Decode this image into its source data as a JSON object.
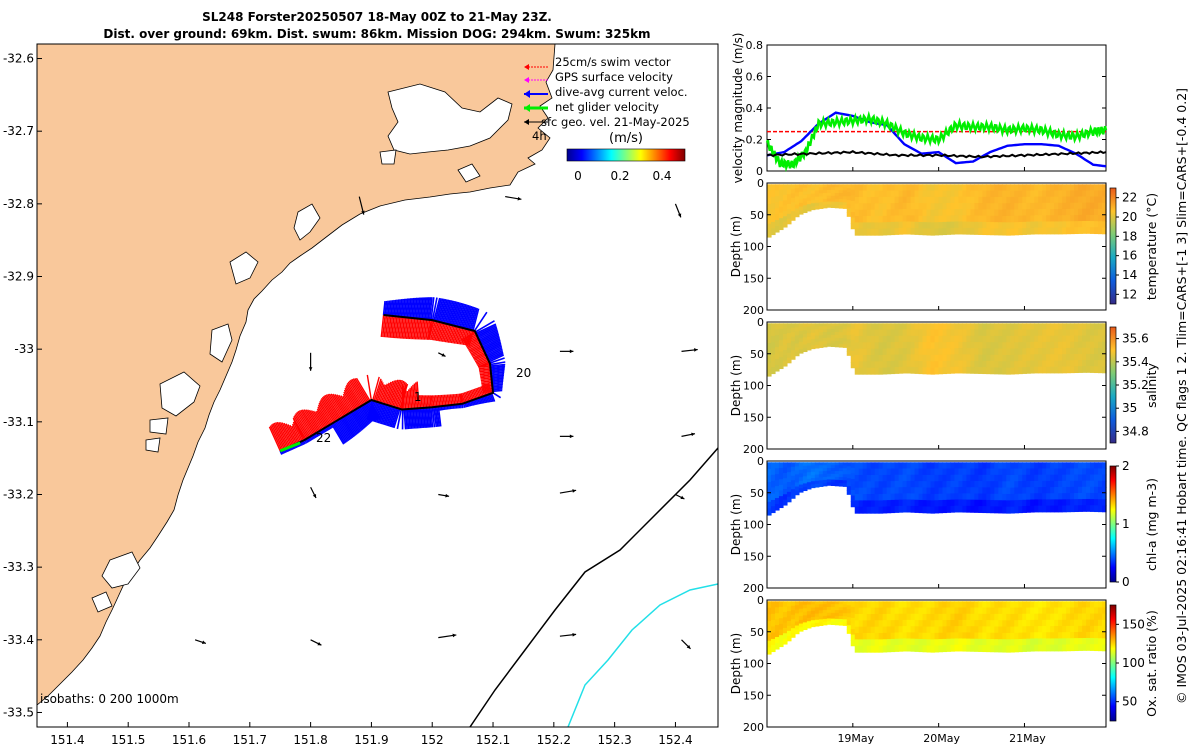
{
  "title": {
    "line1": "SL248 Forster20250507 18-May 00Z to 21-May 23Z.",
    "line2": "Dist. over ground: 69km. Dist. swum: 86km. Mission DOG: 294km. Swum: 325km"
  },
  "side_caption": "© IMOS 03-Jul-2025 02:16:41 Hobart time. QC flags 1  2. Tlim=CARS+[-1 3] Slim=CARS+[-0.4 0.2]",
  "chart_data": [
    {
      "id": "map",
      "type": "scatter",
      "title": "",
      "xlabel": "",
      "ylabel": "",
      "xlim": [
        151.35,
        152.47
      ],
      "ylim": [
        -33.52,
        -32.58
      ],
      "x_ticks": [
        "151.4",
        "151.5",
        "151.6",
        "151.7",
        "151.8",
        "151.9",
        "152",
        "152.1",
        "152.2",
        "152.3",
        "152.4"
      ],
      "y_ticks": [
        "-32.6",
        "-32.7",
        "-32.8",
        "-32.9",
        "-33",
        "-33.1",
        "-33.2",
        "-33.3",
        "-33.4",
        "-33.5"
      ],
      "legend": [
        {
          "label": "25cm/s swim vector",
          "color": "#ff0000"
        },
        {
          "label": "GPS surface velocity",
          "color": "#ff00ff"
        },
        {
          "label": "dive-avg current veloc.",
          "color": "#0000ff"
        },
        {
          "label": "net glider velocity",
          "color": "#00cc00"
        },
        {
          "label": "sfc geo. vel. 21-May-2025",
          "color": "#000000"
        }
      ],
      "colorbar": {
        "label": "(m/s)",
        "ticks": [
          "0",
          "0.2",
          "0.4"
        ],
        "range": [
          0,
          0.5
        ]
      },
      "annotations": [
        "4h",
        "1",
        "20",
        "22"
      ],
      "isobaths_label": "isobaths: 0   200  1000m",
      "track": [
        [
          151.92,
          -32.953
        ],
        [
          152.0,
          -32.96
        ],
        [
          152.07,
          -32.975
        ],
        [
          152.095,
          -33.02
        ],
        [
          152.1,
          -33.06
        ],
        [
          152.05,
          -33.075
        ],
        [
          152.0,
          -33.08
        ],
        [
          151.95,
          -33.083
        ],
        [
          151.9,
          -33.07
        ],
        [
          151.84,
          -33.1
        ],
        [
          151.79,
          -33.125
        ],
        [
          151.75,
          -33.14
        ]
      ],
      "sfc_vel_points": [
        [
          151.88,
          -32.79,
          0.005,
          -0.02
        ],
        [
          152.12,
          -32.79,
          0.018,
          -0.003
        ],
        [
          152.4,
          -32.8,
          0.006,
          -0.015
        ],
        [
          151.8,
          -33.005,
          0.0,
          -0.02
        ],
        [
          152.01,
          -33.005,
          0.008,
          -0.004
        ],
        [
          152.21,
          -33.003,
          0.015,
          0.0
        ],
        [
          152.41,
          -33.003,
          0.018,
          0.002
        ],
        [
          152.21,
          -33.12,
          0.015,
          0.0
        ],
        [
          152.41,
          -33.12,
          0.015,
          0.003
        ],
        [
          151.8,
          -33.19,
          0.006,
          -0.012
        ],
        [
          152.01,
          -33.2,
          0.012,
          -0.002
        ],
        [
          152.21,
          -33.198,
          0.018,
          0.003
        ],
        [
          152.4,
          -33.2,
          0.01,
          -0.005
        ],
        [
          151.61,
          -33.4,
          0.012,
          -0.004
        ],
        [
          151.8,
          -33.4,
          0.012,
          -0.006
        ],
        [
          152.01,
          -33.397,
          0.02,
          0.003
        ],
        [
          152.21,
          -33.395,
          0.018,
          0.002
        ],
        [
          152.41,
          -33.4,
          0.01,
          -0.01
        ]
      ]
    },
    {
      "id": "velocity",
      "type": "line",
      "title": "",
      "xlabel": "",
      "ylabel": "velocity magnitude (m/s)",
      "xlim": [
        18.0,
        21.95
      ],
      "ylim": [
        0,
        0.8
      ],
      "y_ticks": [
        "0",
        "0.2",
        "0.4",
        "0.6",
        "0.8"
      ],
      "series": [
        {
          "name": "swim",
          "color": "#ff0000",
          "style": "dashed",
          "x": [
            18.0,
            21.95
          ],
          "values": [
            0.25,
            0.25
          ]
        },
        {
          "name": "dive-avg current",
          "color": "#0000ff",
          "x": [
            18.0,
            18.2,
            18.4,
            18.6,
            18.8,
            19.0,
            19.2,
            19.4,
            19.6,
            19.8,
            20.0,
            20.2,
            20.4,
            20.6,
            20.8,
            21.0,
            21.2,
            21.4,
            21.6,
            21.8,
            21.95
          ],
          "values": [
            0.1,
            0.12,
            0.19,
            0.3,
            0.37,
            0.35,
            0.31,
            0.29,
            0.17,
            0.11,
            0.12,
            0.05,
            0.06,
            0.12,
            0.16,
            0.17,
            0.17,
            0.16,
            0.11,
            0.04,
            0.03
          ]
        },
        {
          "name": "net glider",
          "color": "#00ee00",
          "x": [
            18.0,
            18.15,
            18.3,
            18.45,
            18.6,
            18.8,
            19.0,
            19.2,
            19.4,
            19.6,
            19.8,
            20.0,
            20.2,
            20.4,
            20.6,
            20.8,
            21.0,
            21.2,
            21.4,
            21.6,
            21.8,
            21.95
          ],
          "values": [
            0.18,
            0.05,
            0.04,
            0.12,
            0.3,
            0.31,
            0.32,
            0.33,
            0.3,
            0.24,
            0.21,
            0.2,
            0.29,
            0.28,
            0.28,
            0.26,
            0.27,
            0.26,
            0.23,
            0.22,
            0.25,
            0.26
          ]
        },
        {
          "name": "GPS surface",
          "color": "#000000",
          "x": [
            18.0,
            18.5,
            19.0,
            19.5,
            20.0,
            20.5,
            21.0,
            21.5,
            21.95
          ],
          "values": [
            0.1,
            0.11,
            0.12,
            0.1,
            0.1,
            0.09,
            0.1,
            0.11,
            0.12
          ]
        }
      ]
    },
    {
      "id": "temperature",
      "type": "heatmap",
      "ylabel": "Depth (m)",
      "xlim": [
        18.0,
        21.95
      ],
      "ylim": [
        200,
        0
      ],
      "y_ticks": [
        "0",
        "50",
        "100",
        "150",
        "200"
      ],
      "colorbar": {
        "label": "temperature (°C)",
        "range": [
          11,
          23
        ],
        "ticks": [
          "12",
          "14",
          "16",
          "18",
          "20",
          "22"
        ]
      },
      "profile_x": [
        18.0,
        18.2,
        18.35,
        18.5,
        18.7,
        18.9,
        19.0,
        19.3,
        19.6,
        19.9,
        20.2,
        20.5,
        20.8,
        21.1,
        21.4,
        21.7,
        21.95
      ],
      "profile_max_depth": [
        85,
        68,
        50,
        42,
        38,
        40,
        82,
        82,
        80,
        82,
        80,
        81,
        82,
        80,
        80,
        79,
        80
      ],
      "profile_values": [
        20.5,
        20.6,
        20.7,
        20.6,
        20.8,
        20.9,
        20.8,
        20.6,
        20.9,
        20.4,
        20.5,
        20.9,
        21.0,
        20.8,
        21.0,
        21.2,
        21.1
      ]
    },
    {
      "id": "salinity",
      "type": "heatmap",
      "ylabel": "Depth (m)",
      "xlim": [
        18.0,
        21.95
      ],
      "ylim": [
        200,
        0
      ],
      "y_ticks": [
        "0",
        "50",
        "100",
        "150",
        "200"
      ],
      "colorbar": {
        "label": "salinity",
        "range": [
          34.7,
          35.7
        ],
        "ticks": [
          "34.8",
          "35",
          "35.2",
          "35.4",
          "35.6"
        ]
      },
      "profile_x": [
        18.0,
        18.2,
        18.35,
        18.5,
        18.7,
        18.9,
        19.0,
        19.3,
        19.6,
        19.9,
        20.2,
        20.5,
        20.8,
        21.1,
        21.4,
        21.7,
        21.95
      ],
      "profile_max_depth": [
        85,
        68,
        50,
        42,
        38,
        40,
        82,
        82,
        80,
        82,
        80,
        81,
        82,
        80,
        80,
        79,
        80
      ],
      "profile_values": [
        35.43,
        35.45,
        35.44,
        35.46,
        35.44,
        35.45,
        35.47,
        35.44,
        35.45,
        35.5,
        35.48,
        35.44,
        35.45,
        35.46,
        35.47,
        35.45,
        35.44
      ]
    },
    {
      "id": "chlorophyll",
      "type": "heatmap",
      "ylabel": "Depth (m)",
      "xlim": [
        18.0,
        21.95
      ],
      "ylim": [
        200,
        0
      ],
      "y_ticks": [
        "0",
        "50",
        "100",
        "150",
        "200"
      ],
      "colorbar": {
        "label": "chl-a (mg m-3)",
        "range": [
          0,
          2
        ],
        "ticks": [
          "0",
          "1",
          "2"
        ]
      },
      "profile_x": [
        18.0,
        18.2,
        18.35,
        18.5,
        18.7,
        18.9,
        19.0,
        19.3,
        19.6,
        19.9,
        20.2,
        20.5,
        20.8,
        21.1,
        21.4,
        21.7,
        21.95
      ],
      "profile_max_depth": [
        85,
        68,
        50,
        42,
        38,
        40,
        82,
        82,
        80,
        82,
        80,
        81,
        82,
        80,
        80,
        79,
        80
      ],
      "profile_values": [
        0.45,
        0.42,
        0.45,
        0.48,
        0.44,
        0.42,
        0.4,
        0.38,
        0.4,
        0.36,
        0.38,
        0.35,
        0.4,
        0.36,
        0.38,
        0.4,
        0.38
      ]
    },
    {
      "id": "oxygen",
      "type": "heatmap",
      "ylabel": "Depth (m)",
      "xlim": [
        18.0,
        21.95
      ],
      "ylim": [
        200,
        0
      ],
      "y_ticks": [
        "0",
        "50",
        "100",
        "150",
        "200"
      ],
      "x_ticks": [
        "19May",
        "20May",
        "21May"
      ],
      "colorbar": {
        "label": "Ox. sat. ratio (%)",
        "range": [
          25,
          175
        ],
        "ticks": [
          "50",
          "100",
          "150"
        ]
      },
      "profile_x": [
        18.0,
        18.2,
        18.35,
        18.5,
        18.7,
        18.9,
        19.0,
        19.3,
        19.6,
        19.9,
        20.2,
        20.5,
        20.8,
        21.1,
        21.4,
        21.7,
        21.95
      ],
      "profile_max_depth": [
        85,
        68,
        50,
        42,
        38,
        40,
        82,
        82,
        80,
        82,
        80,
        81,
        82,
        80,
        80,
        79,
        80
      ],
      "profile_values": [
        128,
        127,
        128,
        129,
        128,
        127,
        124,
        125,
        123,
        124,
        126,
        123,
        124,
        122,
        123,
        125,
        124
      ]
    }
  ]
}
